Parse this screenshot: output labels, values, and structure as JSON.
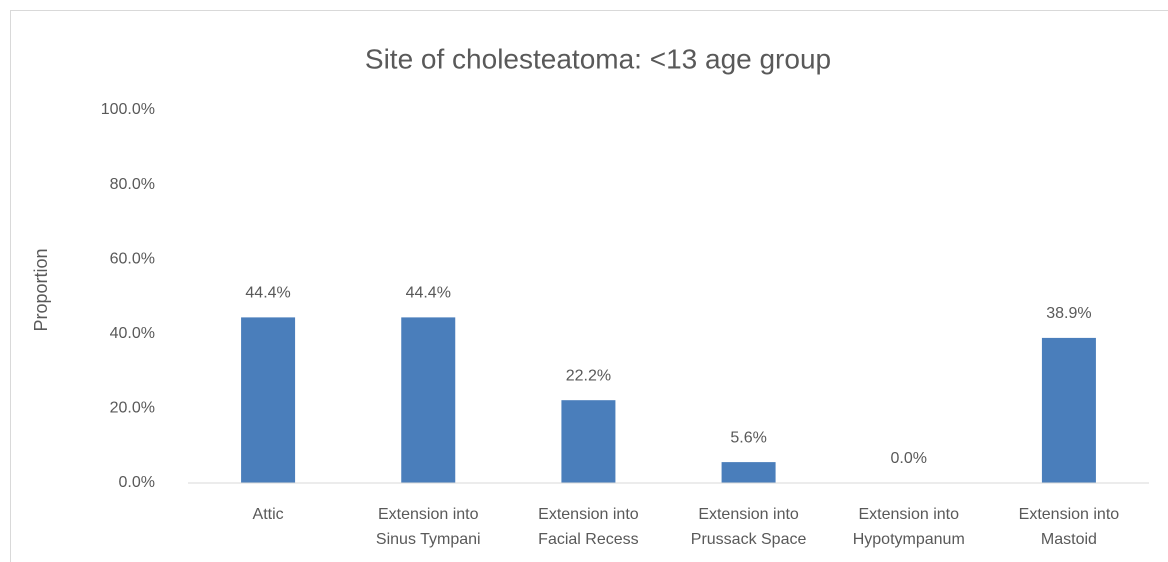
{
  "chart_data": {
    "type": "bar",
    "title": "Site of cholesteatoma: <13 age group",
    "y_label": "Proportion",
    "categories": [
      "Attic",
      "Extension into\nSinus Tympani",
      "Extension into\nFacial Recess",
      "Extension into\nPrussack Space",
      "Extension into\nHypotympanum",
      "Extension into\nMastoid"
    ],
    "values": [
      44.4,
      44.4,
      22.2,
      5.6,
      0.0,
      38.9
    ],
    "value_labels": [
      "44.4%",
      "44.4%",
      "22.2%",
      "5.6%",
      "0.0%",
      "38.9%"
    ],
    "color": "#4a7ebb",
    "ylim": [
      0,
      100
    ],
    "yticks": [
      {
        "value": 0,
        "label": "0.0%"
      },
      {
        "value": 20,
        "label": "20.0%"
      },
      {
        "value": 40,
        "label": "40.0%"
      },
      {
        "value": 60,
        "label": "60.0%"
      },
      {
        "value": 80,
        "label": "80.0%"
      },
      {
        "value": 100,
        "label": "100.0%"
      }
    ],
    "grid": false
  }
}
